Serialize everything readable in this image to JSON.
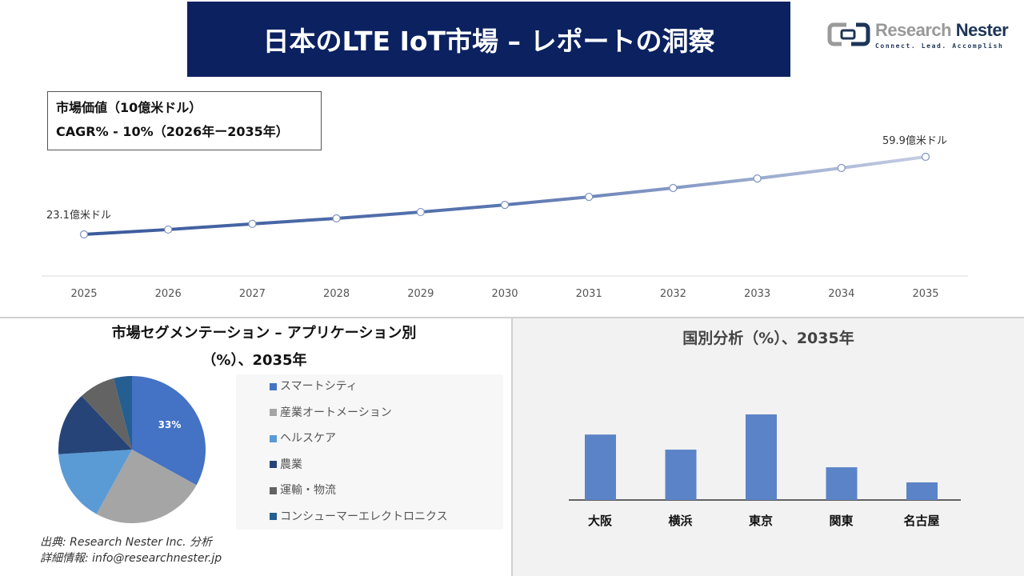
{
  "header": {
    "title": "日本のLTE IoT市場 – レポートの洞察"
  },
  "logo": {
    "name_light": "Research",
    "name_dark": "Nester",
    "tagline": "Connect. Lead. Accomplish"
  },
  "kpi": {
    "line1": "市場価値（10億米ドル）",
    "line2": "CAGR% - 10%（2026年ー2035年）"
  },
  "chart_data": [
    {
      "type": "line",
      "x": [
        "2025",
        "2026",
        "2027",
        "2028",
        "2029",
        "2030",
        "2031",
        "2032",
        "2033",
        "2034",
        "2035"
      ],
      "values": [
        23.1,
        25.4,
        28.1,
        30.7,
        33.7,
        37.1,
        40.9,
        45.1,
        49.6,
        54.6,
        59.9
      ],
      "labels": {
        "first": "23.1億米ドル",
        "last": "59.9億米ドル"
      },
      "line_color_start": "#3a5a9c",
      "line_color_end": "#c5cde2",
      "grid": false
    },
    {
      "type": "pie",
      "title_line1": "市場セグメンテーション – アプリケーション別",
      "title_line2": "（%）、2035年",
      "categories": [
        "スマートシティ",
        "産業オートメーション",
        "ヘルスケア",
        "農業",
        "運輸・物流",
        "コンシューマーエレクトロニクス"
      ],
      "values": [
        33,
        25,
        16,
        14,
        8,
        4
      ],
      "colors": [
        "#4472c4",
        "#a5a5a5",
        "#5b9bd5",
        "#264478",
        "#636363",
        "#255e91"
      ],
      "data_label": "33%"
    },
    {
      "type": "bar",
      "title": "国別分析（%）、2035年",
      "categories": [
        "大阪",
        "横浜",
        "東京",
        "関東",
        "名古屋"
      ],
      "values": [
        26,
        20,
        34,
        13,
        7
      ],
      "color": "#5b84c8"
    }
  ],
  "source": {
    "line1": "出典: Research Nester Inc. 分析",
    "line2": "詳細情報: info@researchnester.jp"
  }
}
